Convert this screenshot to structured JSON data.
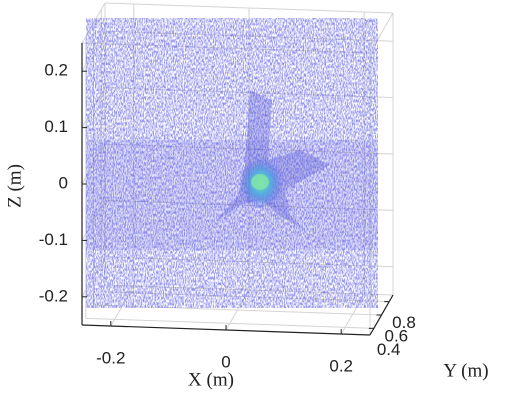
{
  "chart_data": {
    "type": "scatter3d",
    "xlabel": "X (m)",
    "ylabel": "Y (m)",
    "zlabel": "Z (m)",
    "xlim": [
      -0.25,
      0.25
    ],
    "xticks": [
      -0.2,
      0,
      0.2
    ],
    "ylim": [
      0.3,
      0.9
    ],
    "yticks": [
      0.4,
      0.6,
      0.8
    ],
    "zlim": [
      -0.25,
      0.25
    ],
    "zticks": [
      -0.2,
      -0.1,
      0,
      0.1,
      0.2
    ],
    "grid": true,
    "color": "#2a2ad0"
  }
}
